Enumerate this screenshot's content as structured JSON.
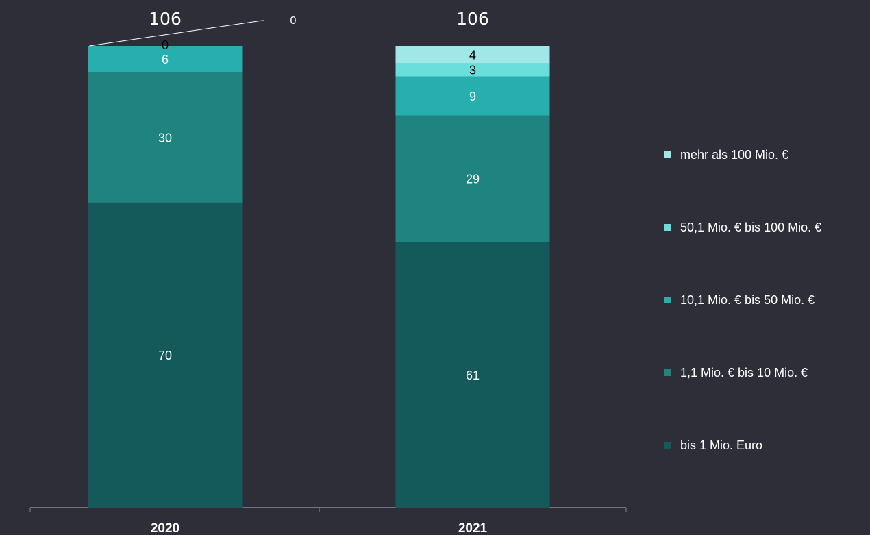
{
  "chart_data": {
    "type": "stacked_bar",
    "categories": [
      "2020",
      "2021"
    ],
    "series": [
      {
        "name": "bis 1 Mio. Euro",
        "color": "#145a5a",
        "values": [
          70,
          61
        ]
      },
      {
        "name": "1,1 Mio. € bis 10 Mio. €",
        "color": "#1f8380",
        "values": [
          30,
          29
        ]
      },
      {
        "name": "10,1 Mio. € bis 50 Mio. €",
        "color": "#27aeae",
        "values": [
          6,
          9
        ]
      },
      {
        "name": "50,1 Mio. € bis 100 Mio. €",
        "color": "#6adedb",
        "values": [
          0,
          3
        ]
      },
      {
        "name": "mehr als 100 Mio. €",
        "color": "#a0e8e8",
        "values": [
          0,
          4
        ]
      }
    ],
    "totals": [
      106,
      106
    ],
    "ylim": [
      0,
      106
    ],
    "legend": "right"
  }
}
